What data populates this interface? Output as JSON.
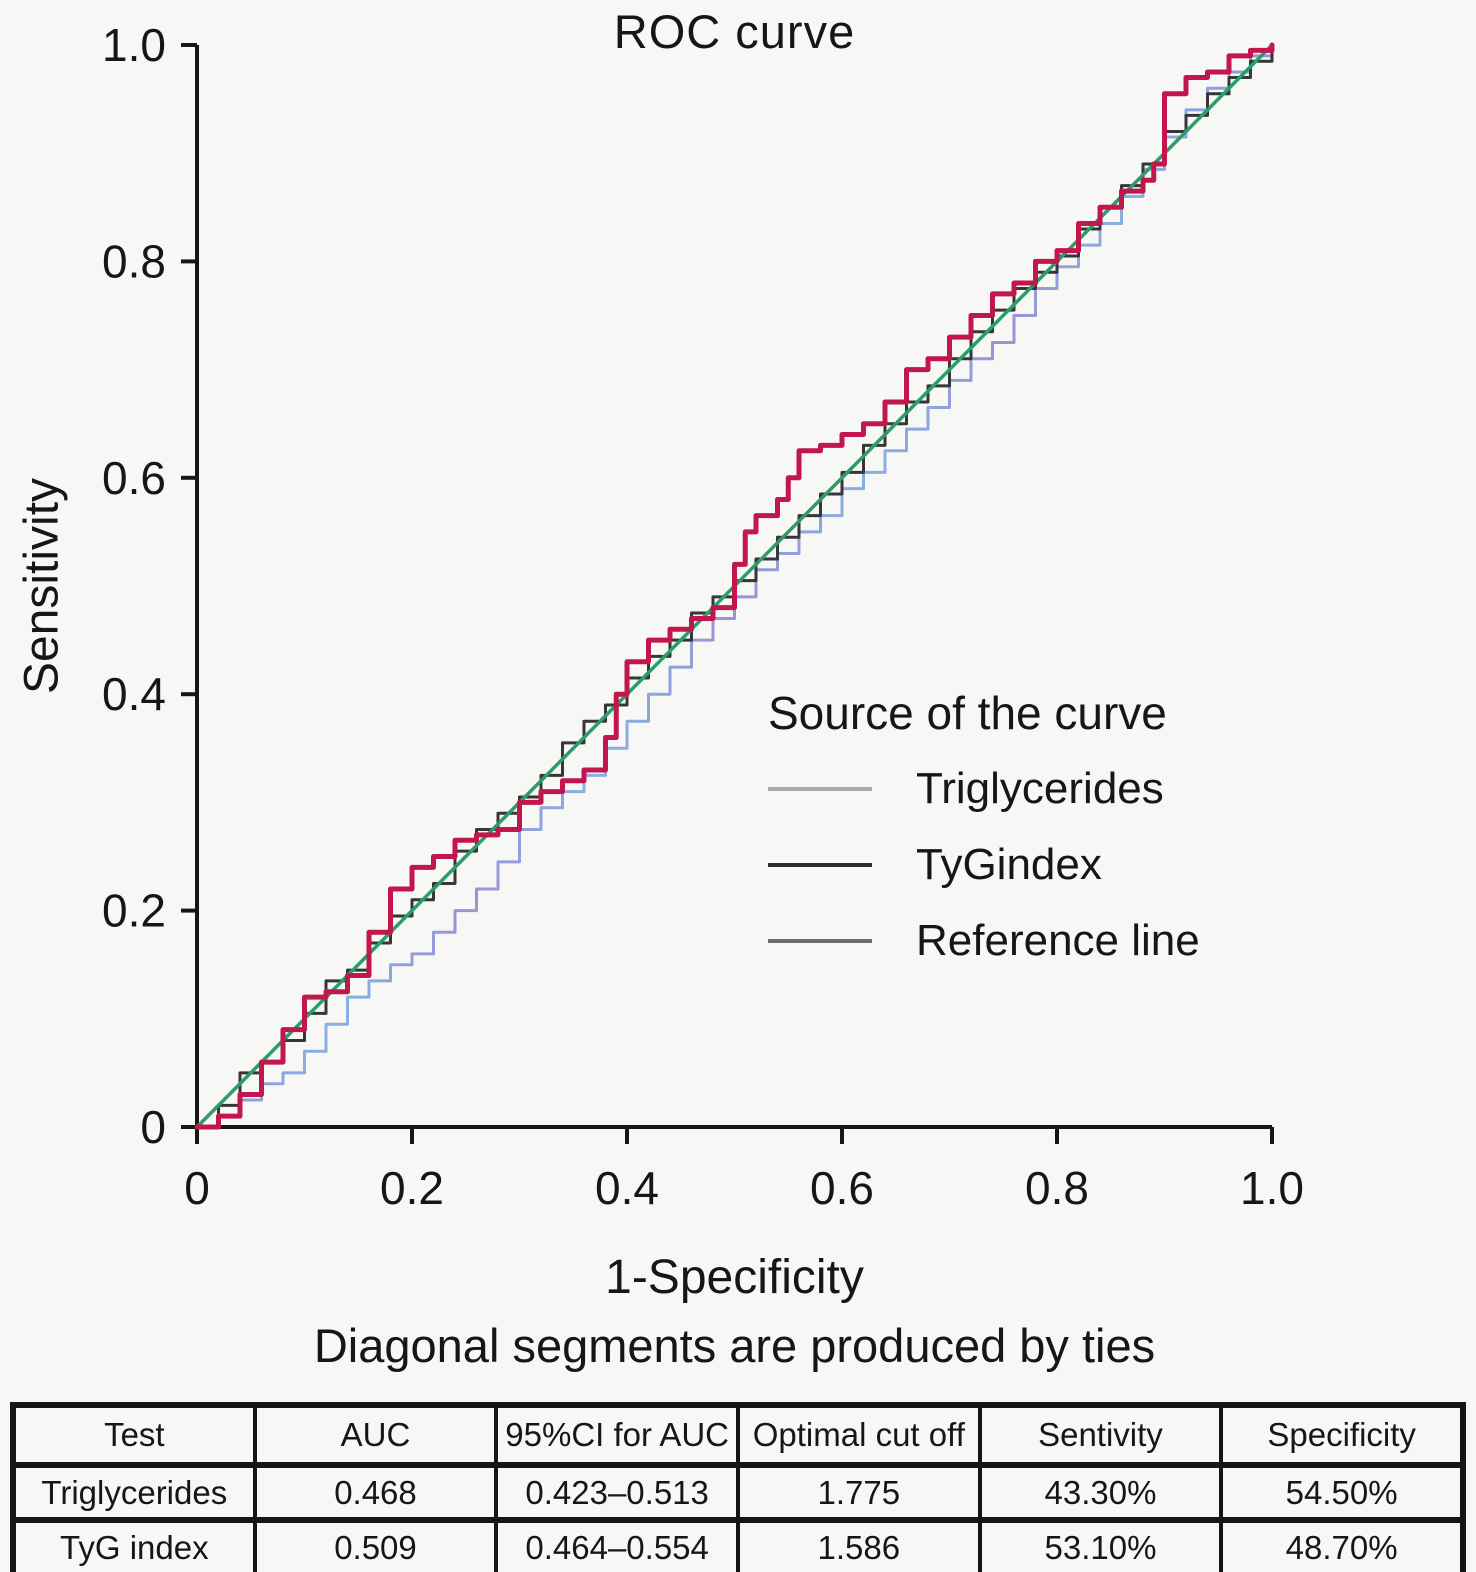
{
  "title": "ROC curve",
  "axes": {
    "x_label": "1-Specificity",
    "y_label": "Sensitivity",
    "x_ticks": [
      "0",
      "0.2",
      "0.4",
      "0.6",
      "0.8",
      "1.0"
    ],
    "y_ticks": [
      "0",
      "0.2",
      "0.4",
      "0.6",
      "0.8",
      "1.0"
    ]
  },
  "caption": "Diagonal segments are produced by ties",
  "legend": {
    "title": "Source of the curve",
    "items": [
      {
        "label": "Triglycerides",
        "line_color": "#a8a8a8"
      },
      {
        "label": "TyGindex",
        "line_color": "#2f2f2f"
      },
      {
        "label": "Reference line",
        "line_color": "#6f6f6f"
      }
    ]
  },
  "chart_data": {
    "type": "line",
    "title": "ROC curve",
    "xlabel": "1-Specificity",
    "ylabel": "Sensitivity",
    "xlim": [
      0,
      1
    ],
    "ylim": [
      0,
      1
    ],
    "grid": false,
    "legend_title": "Source of the curve",
    "legend_position": "inside lower-right of plot",
    "series": [
      {
        "name": "Triglycerides",
        "auc": 0.468,
        "style": "step",
        "color": "#8f9fd9",
        "color_variants": [
          "#9b92d6",
          "#87b2e3"
        ],
        "width": 3,
        "points": [
          [
            0,
            0
          ],
          [
            0.02,
            0.01
          ],
          [
            0.04,
            0.025
          ],
          [
            0.06,
            0.04
          ],
          [
            0.08,
            0.05
          ],
          [
            0.1,
            0.07
          ],
          [
            0.12,
            0.095
          ],
          [
            0.14,
            0.12
          ],
          [
            0.16,
            0.135
          ],
          [
            0.18,
            0.15
          ],
          [
            0.2,
            0.16
          ],
          [
            0.22,
            0.18
          ],
          [
            0.24,
            0.2
          ],
          [
            0.26,
            0.22
          ],
          [
            0.28,
            0.245
          ],
          [
            0.3,
            0.275
          ],
          [
            0.32,
            0.295
          ],
          [
            0.34,
            0.31
          ],
          [
            0.36,
            0.325
          ],
          [
            0.38,
            0.35
          ],
          [
            0.4,
            0.375
          ],
          [
            0.42,
            0.4
          ],
          [
            0.44,
            0.425
          ],
          [
            0.46,
            0.45
          ],
          [
            0.48,
            0.47
          ],
          [
            0.5,
            0.49
          ],
          [
            0.52,
            0.515
          ],
          [
            0.54,
            0.53
          ],
          [
            0.56,
            0.55
          ],
          [
            0.58,
            0.565
          ],
          [
            0.6,
            0.59
          ],
          [
            0.62,
            0.605
          ],
          [
            0.64,
            0.625
          ],
          [
            0.66,
            0.645
          ],
          [
            0.68,
            0.665
          ],
          [
            0.7,
            0.69
          ],
          [
            0.72,
            0.71
          ],
          [
            0.74,
            0.725
          ],
          [
            0.76,
            0.75
          ],
          [
            0.78,
            0.775
          ],
          [
            0.8,
            0.795
          ],
          [
            0.82,
            0.815
          ],
          [
            0.84,
            0.835
          ],
          [
            0.86,
            0.86
          ],
          [
            0.88,
            0.885
          ],
          [
            0.9,
            0.915
          ],
          [
            0.92,
            0.94
          ],
          [
            0.94,
            0.96
          ],
          [
            0.96,
            0.975
          ],
          [
            0.98,
            0.99
          ],
          [
            1,
            1
          ]
        ]
      },
      {
        "name": "dark gray curve (unlabeled)",
        "style": "step",
        "color": "#36363b",
        "width": 3,
        "points": [
          [
            0,
            0
          ],
          [
            0.02,
            0.02
          ],
          [
            0.04,
            0.05
          ],
          [
            0.06,
            0.06
          ],
          [
            0.08,
            0.08
          ],
          [
            0.1,
            0.105
          ],
          [
            0.12,
            0.135
          ],
          [
            0.14,
            0.145
          ],
          [
            0.16,
            0.17
          ],
          [
            0.18,
            0.195
          ],
          [
            0.2,
            0.21
          ],
          [
            0.22,
            0.225
          ],
          [
            0.24,
            0.255
          ],
          [
            0.26,
            0.275
          ],
          [
            0.28,
            0.29
          ],
          [
            0.3,
            0.305
          ],
          [
            0.32,
            0.325
          ],
          [
            0.34,
            0.355
          ],
          [
            0.36,
            0.375
          ],
          [
            0.38,
            0.39
          ],
          [
            0.4,
            0.415
          ],
          [
            0.42,
            0.435
          ],
          [
            0.44,
            0.45
          ],
          [
            0.46,
            0.475
          ],
          [
            0.48,
            0.49
          ],
          [
            0.5,
            0.505
          ],
          [
            0.52,
            0.525
          ],
          [
            0.54,
            0.545
          ],
          [
            0.56,
            0.565
          ],
          [
            0.58,
            0.585
          ],
          [
            0.6,
            0.605
          ],
          [
            0.62,
            0.63
          ],
          [
            0.64,
            0.65
          ],
          [
            0.66,
            0.67
          ],
          [
            0.68,
            0.685
          ],
          [
            0.7,
            0.71
          ],
          [
            0.72,
            0.735
          ],
          [
            0.74,
            0.755
          ],
          [
            0.76,
            0.775
          ],
          [
            0.78,
            0.79
          ],
          [
            0.8,
            0.805
          ],
          [
            0.82,
            0.83
          ],
          [
            0.84,
            0.85
          ],
          [
            0.86,
            0.87
          ],
          [
            0.88,
            0.89
          ],
          [
            0.9,
            0.92
          ],
          [
            0.92,
            0.935
          ],
          [
            0.94,
            0.955
          ],
          [
            0.96,
            0.97
          ],
          [
            0.98,
            0.985
          ],
          [
            1,
            1
          ]
        ]
      },
      {
        "name": "Reference line",
        "style": "straight",
        "color": "#2b9e68",
        "width": 3.5,
        "points": [
          [
            0,
            0
          ],
          [
            1,
            1
          ]
        ]
      },
      {
        "name": "TyGindex",
        "auc": 0.509,
        "style": "step",
        "color": "#c2174e",
        "width": 5,
        "points": [
          [
            0,
            0
          ],
          [
            0.02,
            0.01
          ],
          [
            0.04,
            0.03
          ],
          [
            0.06,
            0.06
          ],
          [
            0.08,
            0.09
          ],
          [
            0.1,
            0.12
          ],
          [
            0.12,
            0.125
          ],
          [
            0.14,
            0.14
          ],
          [
            0.16,
            0.18
          ],
          [
            0.18,
            0.22
          ],
          [
            0.2,
            0.24
          ],
          [
            0.22,
            0.25
          ],
          [
            0.24,
            0.265
          ],
          [
            0.26,
            0.27
          ],
          [
            0.28,
            0.275
          ],
          [
            0.3,
            0.3
          ],
          [
            0.32,
            0.31
          ],
          [
            0.34,
            0.32
          ],
          [
            0.36,
            0.33
          ],
          [
            0.38,
            0.36
          ],
          [
            0.39,
            0.4
          ],
          [
            0.4,
            0.43
          ],
          [
            0.42,
            0.45
          ],
          [
            0.44,
            0.46
          ],
          [
            0.46,
            0.47
          ],
          [
            0.48,
            0.48
          ],
          [
            0.5,
            0.52
          ],
          [
            0.51,
            0.55
          ],
          [
            0.52,
            0.565
          ],
          [
            0.54,
            0.58
          ],
          [
            0.55,
            0.6
          ],
          [
            0.56,
            0.625
          ],
          [
            0.58,
            0.63
          ],
          [
            0.6,
            0.64
          ],
          [
            0.62,
            0.65
          ],
          [
            0.64,
            0.67
          ],
          [
            0.66,
            0.7
          ],
          [
            0.68,
            0.71
          ],
          [
            0.7,
            0.73
          ],
          [
            0.72,
            0.75
          ],
          [
            0.74,
            0.77
          ],
          [
            0.76,
            0.78
          ],
          [
            0.78,
            0.8
          ],
          [
            0.8,
            0.81
          ],
          [
            0.82,
            0.835
          ],
          [
            0.84,
            0.85
          ],
          [
            0.86,
            0.865
          ],
          [
            0.88,
            0.875
          ],
          [
            0.89,
            0.89
          ],
          [
            0.9,
            0.955
          ],
          [
            0.92,
            0.97
          ],
          [
            0.94,
            0.975
          ],
          [
            0.96,
            0.99
          ],
          [
            0.98,
            0.995
          ],
          [
            1,
            1
          ]
        ]
      }
    ]
  },
  "table": {
    "headers": [
      "Test",
      "AUC",
      "95%CI for AUC",
      "Optimal cut off",
      "Sentivity",
      "Specificity"
    ],
    "rows": [
      [
        "Triglycerides",
        "0.468",
        "0.423–0.513",
        "1.775",
        "43.30%",
        "54.50%"
      ],
      [
        "TyG index",
        "0.509",
        "0.464–0.554",
        "1.586",
        "53.10%",
        "48.70%"
      ]
    ]
  },
  "colors": {
    "background": "#f7f7f6",
    "axis": "#161616",
    "text": "#161616",
    "table_border": "#151515"
  }
}
